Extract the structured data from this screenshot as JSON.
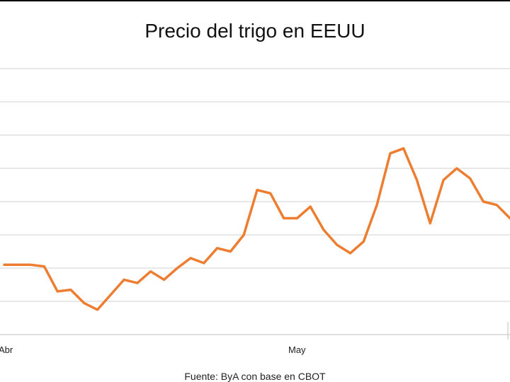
{
  "chart_data": {
    "type": "line",
    "title": "Precio del trigo en EEUU",
    "xlabel": "",
    "ylabel": "",
    "x_tick_labels": [
      "Abr",
      "May"
    ],
    "grid": true,
    "legend": "none",
    "series": [
      {
        "color": "#ED7D31",
        "values": [
          4.1,
          4.1,
          4.1,
          4.05,
          3.3,
          3.35,
          2.95,
          2.75,
          3.2,
          3.65,
          3.55,
          3.9,
          3.65,
          4.0,
          4.3,
          4.15,
          4.6,
          4.5,
          5.0,
          6.35,
          6.25,
          5.5,
          5.5,
          5.85,
          5.15,
          4.7,
          4.45,
          4.8,
          5.9,
          7.45,
          7.6,
          6.65,
          5.35,
          6.65,
          7.0,
          6.7,
          6.0,
          5.9,
          5.5
        ]
      }
    ]
  },
  "footer": {
    "source": "Fuente: ByA con base en CBOT"
  },
  "style": {
    "line_color": "#ED7D31",
    "grid_color": "#d0d0d0"
  }
}
